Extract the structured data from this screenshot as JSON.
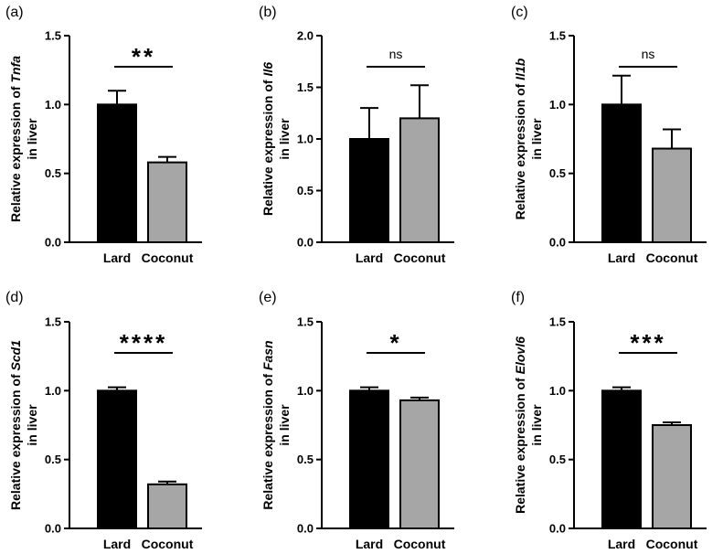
{
  "chart_data": [
    {
      "panel": "(a)",
      "type": "bar",
      "categories": [
        "Lard",
        "Coconut"
      ],
      "values": [
        1.0,
        0.58
      ],
      "errors": [
        0.1,
        0.04
      ],
      "colors": [
        "#000000",
        "#a6a6a6"
      ],
      "ylabel_prefix": "Relative expression of ",
      "gene": "Tnfa",
      "ylabel_line2": "in liver",
      "ylim": [
        0,
        1.5
      ],
      "ticks": [
        "0.0",
        "0.5",
        "1.0",
        "1.5"
      ],
      "significance": "**"
    },
    {
      "panel": "(b)",
      "type": "bar",
      "categories": [
        "Lard",
        "Coconut"
      ],
      "values": [
        1.0,
        1.2
      ],
      "errors": [
        0.3,
        0.32
      ],
      "colors": [
        "#000000",
        "#a6a6a6"
      ],
      "ylabel_prefix": "Relative expression of ",
      "gene": "Il6",
      "ylabel_line2": "in liver",
      "ylim": [
        0,
        2.0
      ],
      "ticks": [
        "0.0",
        "0.5",
        "1.0",
        "1.5",
        "2.0"
      ],
      "significance": "ns"
    },
    {
      "panel": "(c)",
      "type": "bar",
      "categories": [
        "Lard",
        "Coconut"
      ],
      "values": [
        1.0,
        0.68
      ],
      "errors": [
        0.21,
        0.14
      ],
      "colors": [
        "#000000",
        "#a6a6a6"
      ],
      "ylabel_prefix": "Relative expression of ",
      "gene": "Il1b",
      "ylabel_line2": "in liver",
      "ylim": [
        0,
        1.5
      ],
      "ticks": [
        "0.0",
        "0.5",
        "1.0",
        "1.5"
      ],
      "significance": "ns"
    },
    {
      "panel": "(d)",
      "type": "bar",
      "categories": [
        "Lard",
        "Coconut"
      ],
      "values": [
        1.0,
        0.32
      ],
      "errors": [
        0.025,
        0.02
      ],
      "colors": [
        "#000000",
        "#a6a6a6"
      ],
      "ylabel_prefix": "Relative expression of ",
      "gene": "Scd1",
      "ylabel_line2": "in liver",
      "ylim": [
        0,
        1.5
      ],
      "ticks": [
        "0.0",
        "0.5",
        "1.0",
        "1.5"
      ],
      "significance": "****"
    },
    {
      "panel": "(e)",
      "type": "bar",
      "categories": [
        "Lard",
        "Coconut"
      ],
      "values": [
        1.0,
        0.93
      ],
      "errors": [
        0.025,
        0.02
      ],
      "colors": [
        "#000000",
        "#a6a6a6"
      ],
      "ylabel_prefix": "Relative expression of ",
      "gene": "Fasn",
      "ylabel_line2": "in liver",
      "ylim": [
        0,
        1.5
      ],
      "ticks": [
        "0.0",
        "0.5",
        "1.0",
        "1.5"
      ],
      "significance": "*"
    },
    {
      "panel": "(f)",
      "type": "bar",
      "categories": [
        "Lard",
        "Coconut"
      ],
      "values": [
        1.0,
        0.75
      ],
      "errors": [
        0.025,
        0.02
      ],
      "colors": [
        "#000000",
        "#a6a6a6"
      ],
      "ylabel_prefix": "Relative expression of ",
      "gene": "Elovl6",
      "ylabel_line2": "in liver",
      "ylim": [
        0,
        1.5
      ],
      "ticks": [
        "0.0",
        "0.5",
        "1.0",
        "1.5"
      ],
      "significance": "***"
    }
  ]
}
